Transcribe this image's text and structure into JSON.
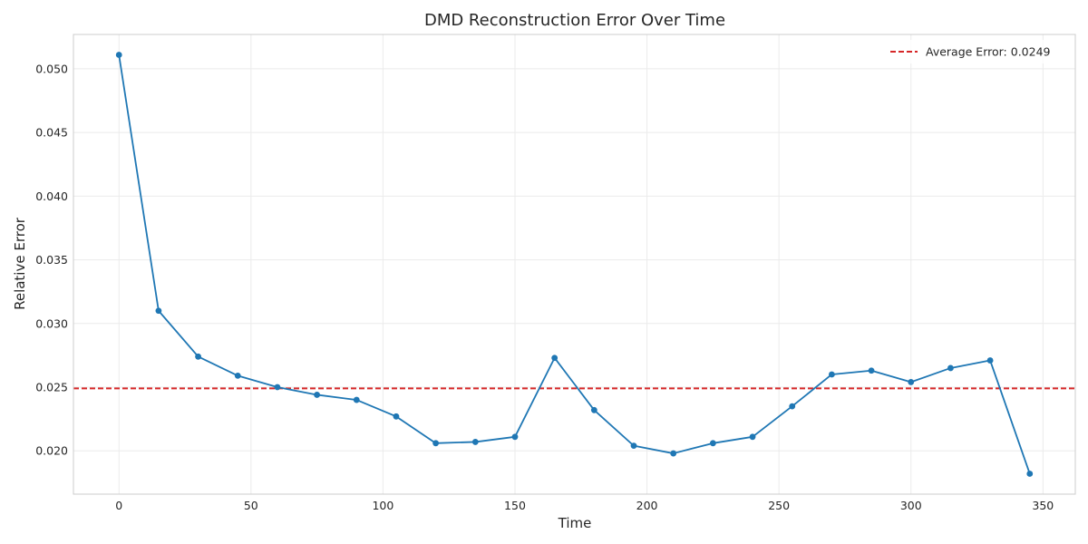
{
  "chart_data": {
    "type": "line",
    "title": "DMD Reconstruction Error Over Time",
    "xlabel": "Time",
    "ylabel": "Relative Error",
    "xlim": [
      -17.25,
      362.25
    ],
    "ylim": [
      0.0166,
      0.0527
    ],
    "xticks": [
      0,
      50,
      100,
      150,
      200,
      250,
      300,
      350
    ],
    "yticks": [
      0.02,
      0.025,
      0.03,
      0.035,
      0.04,
      0.045,
      0.05
    ],
    "ytick_labels": [
      "0.020",
      "0.025",
      "0.030",
      "0.035",
      "0.040",
      "0.045",
      "0.050"
    ],
    "grid": true,
    "legend_position": "top-right",
    "series": [
      {
        "color": "#1f77b4",
        "marker": "circle",
        "x": [
          0,
          15,
          30,
          45,
          60,
          75,
          90,
          105,
          120,
          135,
          150,
          165,
          180,
          195,
          210,
          225,
          240,
          255,
          270,
          285,
          300,
          315,
          330,
          345
        ],
        "y": [
          0.0511,
          0.031,
          0.0274,
          0.0259,
          0.025,
          0.0244,
          0.024,
          0.0227,
          0.0206,
          0.0207,
          0.0211,
          0.0273,
          0.0232,
          0.0204,
          0.0198,
          0.0206,
          0.0211,
          0.0235,
          0.026,
          0.0263,
          0.0254,
          0.0265,
          0.0271,
          0.0182
        ]
      }
    ],
    "reference_lines": [
      {
        "name": "Average Error: 0.0249",
        "orientation": "horizontal",
        "y": 0.0249,
        "color": "#d62728",
        "style": "dashed"
      }
    ]
  }
}
